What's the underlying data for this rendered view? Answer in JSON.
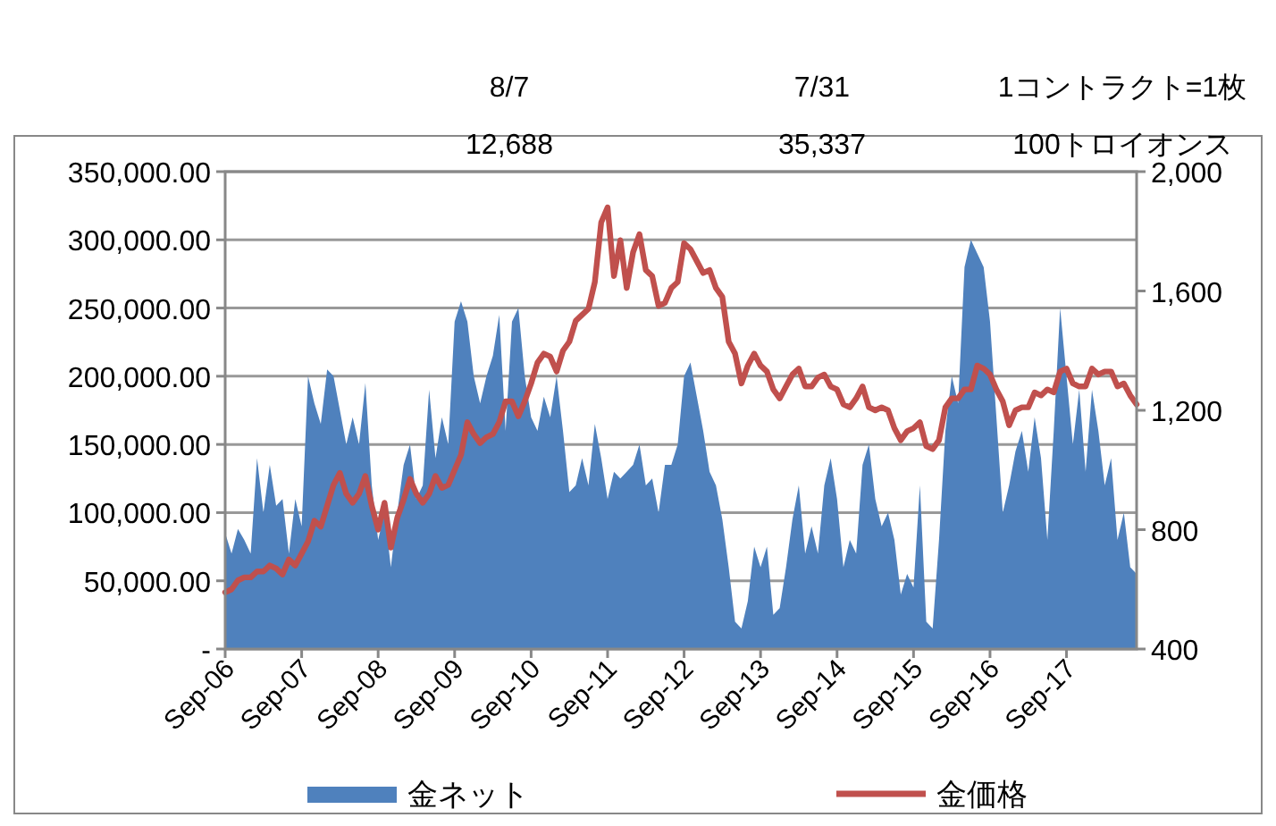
{
  "chart_data": {
    "type": "area",
    "annotations": [
      "8/7",
      "7/31",
      "1コントラクト=1枚",
      "12,688",
      "35,337",
      "100トロイオンス"
    ],
    "x": [
      "2006-09",
      "2006-10",
      "2006-11",
      "2006-12",
      "2007-01",
      "2007-02",
      "2007-03",
      "2007-04",
      "2007-05",
      "2007-06",
      "2007-07",
      "2007-08",
      "2007-09",
      "2007-10",
      "2007-11",
      "2007-12",
      "2008-01",
      "2008-02",
      "2008-03",
      "2008-04",
      "2008-05",
      "2008-06",
      "2008-07",
      "2008-08",
      "2008-09",
      "2008-10",
      "2008-11",
      "2008-12",
      "2009-01",
      "2009-02",
      "2009-03",
      "2009-04",
      "2009-05",
      "2009-06",
      "2009-07",
      "2009-08",
      "2009-09",
      "2009-10",
      "2009-11",
      "2009-12",
      "2010-01",
      "2010-02",
      "2010-03",
      "2010-04",
      "2010-05",
      "2010-06",
      "2010-07",
      "2010-08",
      "2010-09",
      "2010-10",
      "2010-11",
      "2010-12",
      "2011-01",
      "2011-02",
      "2011-03",
      "2011-04",
      "2011-05",
      "2011-06",
      "2011-07",
      "2011-08",
      "2011-09",
      "2011-10",
      "2011-11",
      "2011-12",
      "2012-01",
      "2012-02",
      "2012-03",
      "2012-04",
      "2012-05",
      "2012-06",
      "2012-07",
      "2012-08",
      "2012-09",
      "2012-10",
      "2012-11",
      "2012-12",
      "2013-01",
      "2013-02",
      "2013-03",
      "2013-04",
      "2013-05",
      "2013-06",
      "2013-07",
      "2013-08",
      "2013-09",
      "2013-10",
      "2013-11",
      "2013-12",
      "2014-01",
      "2014-02",
      "2014-03",
      "2014-04",
      "2014-05",
      "2014-06",
      "2014-07",
      "2014-08",
      "2014-09",
      "2014-10",
      "2014-11",
      "2014-12",
      "2015-01",
      "2015-02",
      "2015-03",
      "2015-04",
      "2015-05",
      "2015-06",
      "2015-07",
      "2015-08",
      "2015-09",
      "2015-10",
      "2015-11",
      "2015-12",
      "2016-01",
      "2016-02",
      "2016-03",
      "2016-04",
      "2016-05",
      "2016-06",
      "2016-07",
      "2016-08",
      "2016-09",
      "2016-10",
      "2016-11",
      "2016-12",
      "2017-01",
      "2017-02",
      "2017-03",
      "2017-04",
      "2017-05",
      "2017-06",
      "2017-07",
      "2017-08",
      "2017-09",
      "2017-10",
      "2017-11",
      "2017-12",
      "2018-01",
      "2018-02",
      "2018-03",
      "2018-04",
      "2018-05",
      "2018-06",
      "2018-07",
      "2018-08"
    ],
    "series": [
      {
        "name": "金ネット",
        "type": "area",
        "color": "#4f81bd",
        "values": [
          85000,
          70000,
          88000,
          80000,
          70000,
          140000,
          100000,
          135000,
          105000,
          110000,
          70000,
          110000,
          90000,
          200000,
          180000,
          165000,
          205000,
          200000,
          175000,
          150000,
          170000,
          150000,
          195000,
          120000,
          80000,
          100000,
          60000,
          100000,
          135000,
          150000,
          110000,
          120000,
          190000,
          140000,
          170000,
          150000,
          240000,
          255000,
          240000,
          200000,
          180000,
          200000,
          215000,
          245000,
          160000,
          240000,
          250000,
          200000,
          170000,
          160000,
          185000,
          170000,
          200000,
          160000,
          115000,
          120000,
          140000,
          120000,
          165000,
          140000,
          110000,
          130000,
          125000,
          130000,
          135000,
          150000,
          120000,
          125000,
          100000,
          135000,
          135000,
          150000,
          200000,
          210000,
          185000,
          160000,
          130000,
          120000,
          95000,
          60000,
          20000,
          15000,
          35000,
          75000,
          60000,
          75000,
          25000,
          30000,
          60000,
          95000,
          120000,
          70000,
          90000,
          70000,
          120000,
          140000,
          110000,
          60000,
          80000,
          70000,
          135000,
          150000,
          110000,
          90000,
          100000,
          80000,
          40000,
          55000,
          45000,
          120000,
          20000,
          15000,
          80000,
          160000,
          200000,
          180000,
          280000,
          300000,
          290000,
          280000,
          240000,
          170000,
          100000,
          120000,
          145000,
          160000,
          130000,
          170000,
          140000,
          80000,
          160000,
          250000,
          200000,
          150000,
          190000,
          130000,
          190000,
          160000,
          120000,
          140000,
          80000,
          100000,
          60000,
          55000
        ]
      },
      {
        "name": "金価格",
        "type": "line",
        "axis": "y2",
        "color": "#c0504d",
        "values": [
          590,
          600,
          630,
          640,
          640,
          660,
          660,
          680,
          670,
          650,
          700,
          680,
          720,
          760,
          830,
          810,
          880,
          950,
          990,
          920,
          890,
          920,
          980,
          880,
          800,
          890,
          740,
          840,
          900,
          970,
          920,
          890,
          920,
          980,
          940,
          950,
          1000,
          1050,
          1160,
          1120,
          1090,
          1110,
          1120,
          1160,
          1230,
          1230,
          1180,
          1230,
          1290,
          1360,
          1390,
          1380,
          1330,
          1400,
          1430,
          1500,
          1520,
          1540,
          1630,
          1830,
          1880,
          1650,
          1770,
          1610,
          1730,
          1790,
          1670,
          1650,
          1550,
          1560,
          1610,
          1630,
          1760,
          1740,
          1700,
          1660,
          1670,
          1610,
          1580,
          1430,
          1390,
          1290,
          1350,
          1390,
          1350,
          1330,
          1270,
          1240,
          1280,
          1320,
          1340,
          1280,
          1280,
          1310,
          1320,
          1280,
          1270,
          1220,
          1210,
          1240,
          1280,
          1210,
          1200,
          1210,
          1200,
          1140,
          1100,
          1130,
          1140,
          1160,
          1080,
          1070,
          1100,
          1210,
          1240,
          1240,
          1270,
          1270,
          1350,
          1340,
          1320,
          1270,
          1230,
          1150,
          1200,
          1210,
          1210,
          1260,
          1250,
          1270,
          1260,
          1330,
          1340,
          1290,
          1280,
          1280,
          1340,
          1320,
          1330,
          1330,
          1280,
          1290,
          1250,
          1220
        ]
      }
    ],
    "xlim": [
      "2006-09",
      "2018-08"
    ],
    "xticks": [
      {
        "value": "2006-09",
        "label": "Sep-06"
      },
      {
        "value": "2007-09",
        "label": "Sep-07"
      },
      {
        "value": "2008-09",
        "label": "Sep-08"
      },
      {
        "value": "2009-09",
        "label": "Sep-09"
      },
      {
        "value": "2010-09",
        "label": "Sep-10"
      },
      {
        "value": "2011-09",
        "label": "Sep-11"
      },
      {
        "value": "2012-09",
        "label": "Sep-12"
      },
      {
        "value": "2013-09",
        "label": "Sep-13"
      },
      {
        "value": "2014-09",
        "label": "Sep-14"
      },
      {
        "value": "2015-09",
        "label": "Sep-15"
      },
      {
        "value": "2016-09",
        "label": "Sep-16"
      },
      {
        "value": "2017-09",
        "label": "Sep-17"
      }
    ],
    "ylim": [
      0,
      350000
    ],
    "yticks": [
      {
        "value": 0,
        "label": "-"
      },
      {
        "value": 50000,
        "label": "50,000.00"
      },
      {
        "value": 100000,
        "label": "100,000.00"
      },
      {
        "value": 150000,
        "label": "150,000.00"
      },
      {
        "value": 200000,
        "label": "200,000.00"
      },
      {
        "value": 250000,
        "label": "250,000.00"
      },
      {
        "value": 300000,
        "label": "300,000.00"
      },
      {
        "value": 350000,
        "label": "350,000.00"
      }
    ],
    "y2lim": [
      400,
      2000
    ],
    "y2ticks": [
      400,
      800,
      {
        "value": 1200,
        "label": "1,200"
      },
      {
        "value": 1600,
        "label": "1,600"
      },
      {
        "value": 2000,
        "label": "2,000"
      }
    ],
    "grid": "y",
    "legend": "bottom"
  }
}
